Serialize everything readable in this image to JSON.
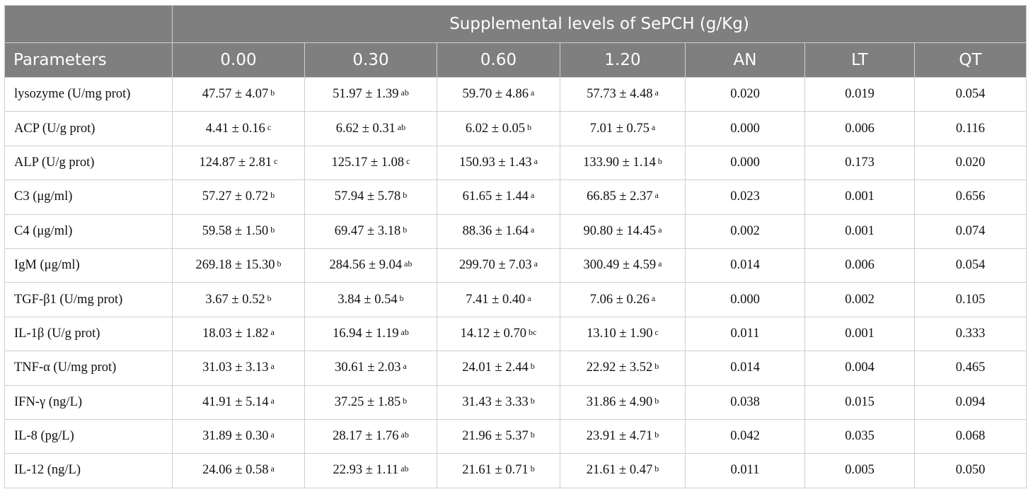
{
  "table": {
    "group_header": "Supplemental levels of SePCH (g/Kg)",
    "columns": [
      "Parameters",
      "0.00",
      "0.30",
      "0.60",
      "1.20",
      "AN",
      "LT",
      "QT"
    ],
    "rows": [
      {
        "param": "lysozyme (U/mg prot)",
        "cells": [
          {
            "v": "47.57 ± 4.07",
            "s": "b"
          },
          {
            "v": "51.97 ± 1.39",
            "s": "ab"
          },
          {
            "v": "59.70 ± 4.86",
            "s": "a"
          },
          {
            "v": "57.73 ± 4.48",
            "s": "a"
          }
        ],
        "an": "0.020",
        "lt": "0.019",
        "qt": "0.054"
      },
      {
        "param": "ACP (U/g prot)",
        "cells": [
          {
            "v": "4.41 ± 0.16",
            "s": "c"
          },
          {
            "v": "6.62 ± 0.31",
            "s": "ab"
          },
          {
            "v": "6.02 ± 0.05",
            "s": "b"
          },
          {
            "v": "7.01 ± 0.75",
            "s": "a"
          }
        ],
        "an": "0.000",
        "lt": "0.006",
        "qt": "0.116"
      },
      {
        "param": "ALP (U/g prot)",
        "cells": [
          {
            "v": "124.87 ± 2.81",
            "s": "c"
          },
          {
            "v": "125.17 ± 1.08",
            "s": "c"
          },
          {
            "v": "150.93 ± 1.43",
            "s": "a"
          },
          {
            "v": "133.90 ± 1.14",
            "s": "b"
          }
        ],
        "an": "0.000",
        "lt": "0.173",
        "qt": "0.020"
      },
      {
        "param": "C3 (μg/ml)",
        "cells": [
          {
            "v": "57.27 ± 0.72",
            "s": "b"
          },
          {
            "v": "57.94 ± 5.78",
            "s": "b"
          },
          {
            "v": "61.65 ± 1.44",
            "s": "a"
          },
          {
            "v": "66.85 ± 2.37",
            "s": "a"
          }
        ],
        "an": "0.023",
        "lt": "0.001",
        "qt": "0.656"
      },
      {
        "param": "C4 (μg/ml)",
        "cells": [
          {
            "v": "59.58 ± 1.50",
            "s": "b"
          },
          {
            "v": "69.47 ± 3.18",
            "s": "b"
          },
          {
            "v": "88.36 ± 1.64",
            "s": "a"
          },
          {
            "v": "90.80 ± 14.45",
            "s": "a"
          }
        ],
        "an": "0.002",
        "lt": "0.001",
        "qt": "0.074"
      },
      {
        "param": "IgM (μg/ml)",
        "cells": [
          {
            "v": "269.18 ± 15.30",
            "s": "b"
          },
          {
            "v": "284.56 ± 9.04",
            "s": "ab"
          },
          {
            "v": "299.70 ± 7.03",
            "s": "a"
          },
          {
            "v": "300.49 ± 4.59",
            "s": "a"
          }
        ],
        "an": "0.014",
        "lt": "0.006",
        "qt": "0.054"
      },
      {
        "param": "TGF-β1 (U/mg prot)",
        "cells": [
          {
            "v": "3.67 ± 0.52",
            "s": "b"
          },
          {
            "v": "3.84 ± 0.54",
            "s": "b"
          },
          {
            "v": "7.41 ± 0.40",
            "s": "a"
          },
          {
            "v": "7.06 ± 0.26",
            "s": "a"
          }
        ],
        "an": "0.000",
        "lt": "0.002",
        "qt": "0.105"
      },
      {
        "param": "IL-1β (U/g prot)",
        "cells": [
          {
            "v": "18.03 ± 1.82",
            "s": "a"
          },
          {
            "v": "16.94 ± 1.19",
            "s": "ab"
          },
          {
            "v": "14.12 ± 0.70",
            "s": "bc"
          },
          {
            "v": "13.10 ± 1.90",
            "s": "c"
          }
        ],
        "an": "0.011",
        "lt": "0.001",
        "qt": "0.333"
      },
      {
        "param": "TNF-α (U/mg prot)",
        "cells": [
          {
            "v": "31.03 ± 3.13",
            "s": "a"
          },
          {
            "v": "30.61 ± 2.03",
            "s": "a"
          },
          {
            "v": "24.01 ± 2.44",
            "s": "b"
          },
          {
            "v": "22.92 ± 3.52",
            "s": "b"
          }
        ],
        "an": "0.014",
        "lt": "0.004",
        "qt": "0.465"
      },
      {
        "param": "IFN-γ (ng/L)",
        "cells": [
          {
            "v": "41.91 ± 5.14",
            "s": "a"
          },
          {
            "v": "37.25 ± 1.85",
            "s": "b"
          },
          {
            "v": "31.43 ± 3.33",
            "s": "b"
          },
          {
            "v": "31.86 ± 4.90",
            "s": "b"
          }
        ],
        "an": "0.038",
        "lt": "0.015",
        "qt": "0.094"
      },
      {
        "param": "IL-8 (pg/L)",
        "cells": [
          {
            "v": "31.89 ± 0.30",
            "s": "a"
          },
          {
            "v": "28.17 ± 1.76",
            "s": "ab"
          },
          {
            "v": "21.96 ± 5.37",
            "s": "b"
          },
          {
            "v": "23.91 ± 4.71",
            "s": "b"
          }
        ],
        "an": "0.042",
        "lt": "0.035",
        "qt": "0.068"
      },
      {
        "param": "IL-12 (ng/L)",
        "cells": [
          {
            "v": "24.06 ± 0.58",
            "s": "a"
          },
          {
            "v": "22.93 ± 1.11",
            "s": "ab"
          },
          {
            "v": "21.61 ± 0.71",
            "s": "b"
          },
          {
            "v": "21.61 ± 0.47",
            "s": "b"
          }
        ],
        "an": "0.011",
        "lt": "0.005",
        "qt": "0.050"
      }
    ]
  }
}
